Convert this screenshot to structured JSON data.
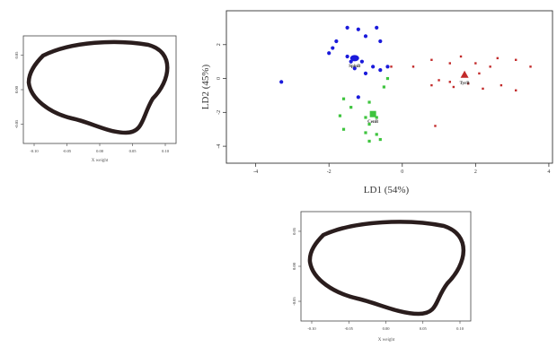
{
  "chart_data": [
    {
      "type": "scatter",
      "name_hint": "lda",
      "xlabel": "LD1 (54%)",
      "ylabel": "LD2 (45%)",
      "xlim": [
        -4.8,
        4.1
      ],
      "ylim": [
        -5.0,
        4.0
      ],
      "x_ticks": [
        "-4",
        "-2",
        "0",
        "2",
        "4"
      ],
      "y_ticks": [
        "2",
        "0",
        "-2",
        "-4"
      ],
      "grid": false,
      "series": [
        {
          "name": "SpinB",
          "color": "#1a1adb",
          "centroid": [
            -1.3,
            1.2
          ],
          "points": [
            [
              -1.5,
              3.0
            ],
            [
              -1.2,
              2.9
            ],
            [
              -0.7,
              3.0
            ],
            [
              -1.0,
              2.5
            ],
            [
              -1.8,
              2.2
            ],
            [
              -0.6,
              2.2
            ],
            [
              -1.9,
              1.8
            ],
            [
              -2.0,
              1.5
            ],
            [
              -1.5,
              1.3
            ],
            [
              -1.1,
              1.0
            ],
            [
              -0.8,
              0.7
            ],
            [
              -0.6,
              0.5
            ],
            [
              -1.3,
              0.6
            ],
            [
              -0.4,
              0.7
            ],
            [
              -3.3,
              -0.2
            ],
            [
              -1.2,
              -1.1
            ],
            [
              -1.4,
              1.0
            ],
            [
              -1.0,
              0.3
            ]
          ]
        },
        {
          "name": "CenB",
          "color": "#3ec43e",
          "centroid": [
            -0.8,
            -2.1
          ],
          "points": [
            [
              -0.4,
              0.0
            ],
            [
              -0.5,
              -0.5
            ],
            [
              -1.6,
              -1.2
            ],
            [
              -0.9,
              -1.4
            ],
            [
              -1.4,
              -1.7
            ],
            [
              -1.7,
              -2.2
            ],
            [
              -1.0,
              -2.3
            ],
            [
              -0.7,
              -2.3
            ],
            [
              -0.9,
              -2.7
            ],
            [
              -1.6,
              -3.0
            ],
            [
              -1.0,
              -3.2
            ],
            [
              -0.7,
              -3.3
            ],
            [
              -0.9,
              -3.7
            ],
            [
              -0.6,
              -3.6
            ]
          ]
        },
        {
          "name": "TyrB",
          "color": "#c22a2a",
          "centroid": [
            1.7,
            0.2
          ],
          "points": [
            [
              -0.3,
              0.7
            ],
            [
              0.3,
              0.7
            ],
            [
              0.8,
              1.1
            ],
            [
              1.3,
              0.9
            ],
            [
              1.6,
              1.3
            ],
            [
              2.0,
              0.9
            ],
            [
              2.6,
              1.2
            ],
            [
              3.1,
              1.1
            ],
            [
              3.5,
              0.7
            ],
            [
              2.4,
              0.7
            ],
            [
              2.1,
              0.3
            ],
            [
              1.3,
              -0.2
            ],
            [
              0.8,
              -0.4
            ],
            [
              1.0,
              -0.1
            ],
            [
              1.4,
              -0.5
            ],
            [
              1.8,
              -0.3
            ],
            [
              2.2,
              -0.6
            ],
            [
              2.7,
              -0.4
            ],
            [
              3.1,
              -0.7
            ],
            [
              0.9,
              -2.8
            ]
          ]
        }
      ]
    },
    {
      "type": "line",
      "name_hint": "outline-top-left",
      "xlabel": "X weight",
      "ylabel": "",
      "x_ticks": [
        "-0.10",
        "-0.05",
        "0.00",
        "0.05",
        "0.10"
      ],
      "y_ticks": [
        "0.05",
        "0.00",
        "-0.05"
      ]
    },
    {
      "type": "line",
      "name_hint": "outline-bottom",
      "xlabel": "X weight",
      "ylabel": "",
      "x_ticks": [
        "-0.10",
        "-0.05",
        "0.00",
        "0.05",
        "0.10"
      ],
      "y_ticks": [
        "0.05",
        "0.00",
        "-0.05"
      ]
    }
  ]
}
